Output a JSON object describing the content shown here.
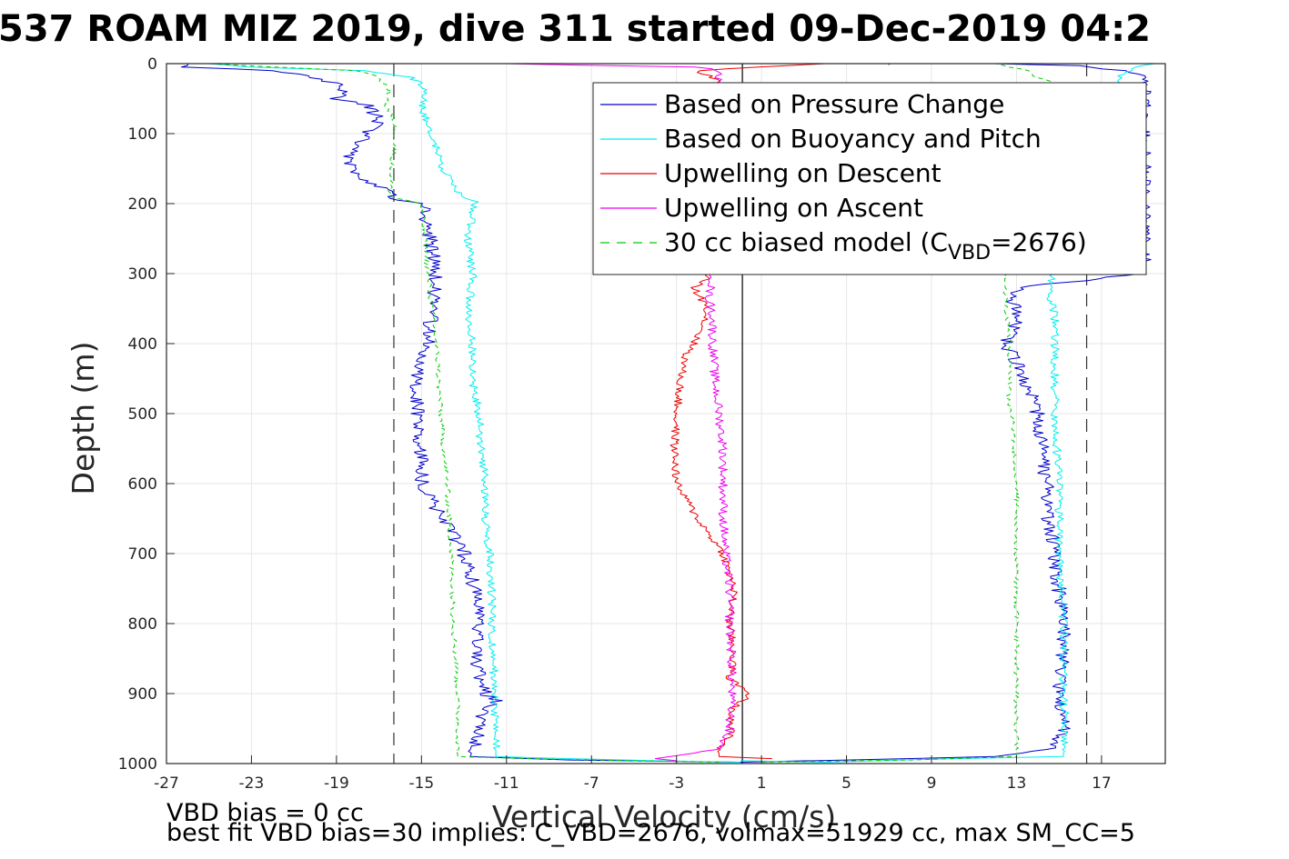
{
  "chart_data": {
    "type": "line",
    "title": "537 ROAM MIZ 2019, dive 311 started 09-Dec-2019 04:2",
    "xlabel": "Vertical Velocity (cm/s)",
    "ylabel": "Depth (m)",
    "xlim": [
      -27,
      20
    ],
    "ylim": [
      0,
      1000
    ],
    "y_reversed": true,
    "grid": true,
    "xticks": [
      -27,
      -23,
      -19,
      -15,
      -11,
      -7,
      -3,
      1,
      5,
      9,
      13,
      17
    ],
    "yticks": [
      0,
      100,
      200,
      300,
      400,
      500,
      600,
      700,
      800,
      900,
      1000
    ],
    "xtick_labels": [
      "-27",
      "-23",
      "-19",
      "-15",
      "-11",
      "-7",
      "-3",
      "1",
      "5",
      "9",
      "13",
      "17"
    ],
    "ytick_labels": [
      "0",
      "100",
      "200",
      "300",
      "400",
      "500",
      "600",
      "700",
      "800",
      "900",
      "1000"
    ],
    "legend": {
      "position": "top-right",
      "entries": [
        {
          "pre": "Based on Pressure Change",
          "sub": "",
          "post": "",
          "color": "#0000cc",
          "dash": ""
        },
        {
          "pre": "Based on Buoyancy and Pitch",
          "sub": "",
          "post": "",
          "color": "#00eeee",
          "dash": ""
        },
        {
          "pre": "Upwelling on Descent",
          "sub": "",
          "post": "",
          "color": "#ee0000",
          "dash": ""
        },
        {
          "pre": "Upwelling on Ascent",
          "sub": "",
          "post": "",
          "color": "#ee00ee",
          "dash": ""
        },
        {
          "pre": "30 cc biased model (C",
          "sub": "VBD",
          "post": "=2676)",
          "color": "#00cc00",
          "dash": "10,8"
        }
      ]
    },
    "reference_lines": [
      {
        "type": "vertical",
        "x": -16.3,
        "style": "dashed",
        "color": "#333333"
      },
      {
        "type": "vertical",
        "x": 0.1,
        "style": "solid",
        "color": "#000000"
      },
      {
        "type": "vertical",
        "x": 16.3,
        "style": "dashed",
        "color": "#333333"
      }
    ],
    "series": [
      {
        "name": "Based on Pressure Change",
        "color": "#0000cc",
        "noise": 0.35,
        "style": "solid",
        "segments": [
          {
            "depth": [
              0,
              5,
              10,
              20,
              30,
              40,
              50,
              60,
              80,
              100,
              120,
              140,
              160,
              175,
              185,
              195,
              200,
              220,
              250,
              300,
              350,
              400,
              450,
              500,
              550,
              600,
              650,
              700,
              750,
              800,
              850,
              900,
              910,
              930,
              960,
              990,
              995,
              998
            ],
            "value": [
              -26,
              -26,
              -22,
              -20,
              -19,
              -18.5,
              -19,
              -17.5,
              -17,
              -17.5,
              -18,
              -18.5,
              -18,
              -17,
              -16.5,
              -16.2,
              -15,
              -14.8,
              -14.6,
              -14.3,
              -14.5,
              -14.7,
              -15.2,
              -15.2,
              -15,
              -15,
              -14,
              -13,
              -12.5,
              -12.3,
              -12.5,
              -12,
              -11.5,
              -12.2,
              -12.4,
              -12.7,
              -8,
              0
            ]
          },
          {
            "depth": [
              2,
              0,
              0,
              3,
              10,
              20,
              40,
              60,
              80,
              100,
              200,
              300,
              320,
              340,
              360,
              380,
              400,
              430,
              460,
              500,
              550,
              600,
              650,
              700,
              750,
              800,
              850,
              900,
              950,
              980,
              990,
              995,
              998
            ],
            "value": [
              7,
              7,
              12,
              16,
              18,
              19,
              19,
              19,
              19,
              19,
              19,
              19,
              13,
              12.8,
              13,
              12.8,
              12.5,
              13,
              13.5,
              14,
              14.2,
              14.4,
              14.5,
              14.8,
              15,
              15.2,
              15.2,
              15,
              15.2,
              14.5,
              12,
              5,
              0
            ]
          }
        ]
      },
      {
        "name": "Based on Buoyancy and Pitch",
        "color": "#00eeee",
        "noise": 0.2,
        "style": "solid",
        "segments": [
          {
            "depth": [
              0,
              5,
              10,
              20,
              30,
              40,
              60,
              80,
              100,
              150,
              190,
              195,
              250,
              300,
              350,
              400,
              450,
              500,
              550,
              600,
              650,
              700,
              750,
              800,
              850,
              900,
              950,
              990,
              993,
              996,
              998
            ],
            "value": [
              -25,
              -23,
              -17.5,
              -15.5,
              -15,
              -14.8,
              -15,
              -14.8,
              -14.5,
              -14,
              -13.2,
              -12.5,
              -12.8,
              -12.6,
              -12.8,
              -12.6,
              -12.6,
              -12.3,
              -12.2,
              -12,
              -12,
              -11.8,
              -11.7,
              -11.7,
              -11.6,
              -11.6,
              -11.5,
              -11.5,
              -8,
              -4,
              0
            ]
          },
          {
            "depth": [
              996,
              998,
              993,
              990,
              950,
              900,
              850,
              800,
              750,
              700,
              650,
              600,
              550,
              500,
              450,
              400,
              360,
              330,
              310,
              300,
              250,
              100,
              40,
              20,
              5,
              0
            ],
            "value": [
              0,
              4,
              10,
              15.2,
              15.3,
              15.2,
              15.2,
              15.2,
              15.1,
              15,
              15,
              15,
              14.9,
              14.8,
              14.8,
              14.8,
              14.8,
              14.5,
              14.6,
              14.8,
              18,
              18,
              18,
              17.8,
              18.5,
              19.5
            ]
          }
        ]
      },
      {
        "name": "Upwelling on Descent",
        "color": "#ee0000",
        "noise": 0.2,
        "style": "solid",
        "segments": [
          {
            "depth": [
              0,
              10,
              25,
              40,
              305,
              320,
              350,
              380,
              400,
              420,
              450,
              500,
              550,
              600,
              650,
              700,
              750,
              800,
              850,
              880,
              900,
              920,
              960,
              980,
              990,
              993
            ],
            "value": [
              4,
              -2,
              -1,
              -2,
              -1.5,
              -2.2,
              -1.5,
              -1.8,
              -2.2,
              -2.6,
              -2.8,
              -3,
              -3.1,
              -3,
              -2,
              -0.8,
              -0.3,
              -0.5,
              -0.3,
              -0.5,
              0.5,
              -0.3,
              -0.5,
              -1,
              -1,
              1.5
            ]
          }
        ]
      },
      {
        "name": "Upwelling on Ascent",
        "color": "#ee00ee",
        "noise": 0.22,
        "style": "solid",
        "segments": [
          {
            "depth": [
              0,
              2,
              5,
              10,
              300,
              330,
              360,
              400,
              450,
              500,
              550,
              600,
              650,
              700,
              750,
              800,
              850,
              900,
              950,
              980,
              993,
              996,
              998
            ],
            "value": [
              -11,
              -8,
              -2,
              -1,
              -1.2,
              -1.5,
              -1.3,
              -1.3,
              -1.2,
              -1,
              -0.8,
              -0.8,
              -0.8,
              -0.7,
              -0.5,
              -0.5,
              -0.4,
              -0.4,
              -0.5,
              -1,
              -4,
              -3,
              -3
            ]
          }
        ]
      },
      {
        "name": "30 cc biased model (CVBD=2676)",
        "color": "#00cc00",
        "noise": 0.12,
        "style": "dashed",
        "segments": [
          {
            "depth": [
              0,
              5,
              10,
              20,
              40,
              60,
              80,
              100,
              150,
              190,
              200,
              300,
              400,
              500,
              600,
              700,
              800,
              900,
              950,
              990,
              993,
              996,
              998
            ],
            "value": [
              -25,
              -22,
              -18,
              -17,
              -16.5,
              -16.7,
              -16.3,
              -16.2,
              -16.4,
              -16.5,
              -15,
              -14.7,
              -14.3,
              -14.1,
              -13.8,
              -13.6,
              -13.5,
              -13.3,
              -13.3,
              -13.3,
              -10,
              -5,
              -1
            ]
          },
          {
            "depth": [
              998,
              995,
              990,
              950,
              900,
              850,
              800,
              700,
              600,
              500,
              480,
              450,
              400,
              350,
              300,
              250,
              100,
              60,
              40,
              20,
              10,
              0
            ],
            "value": [
              1,
              8,
              13,
              13,
              13,
              13,
              13,
              13,
              13,
              12.8,
              12.6,
              12.7,
              12.7,
              12.5,
              12.5,
              18,
              18,
              17.5,
              16,
              14,
              13.5,
              12
            ]
          }
        ]
      }
    ]
  },
  "notes": {
    "line1": "VBD bias = 0 cc",
    "line2": "best fit VBD bias=30 implies: C_VBD=2676, volmax=51929 cc, max SM_CC=5"
  }
}
